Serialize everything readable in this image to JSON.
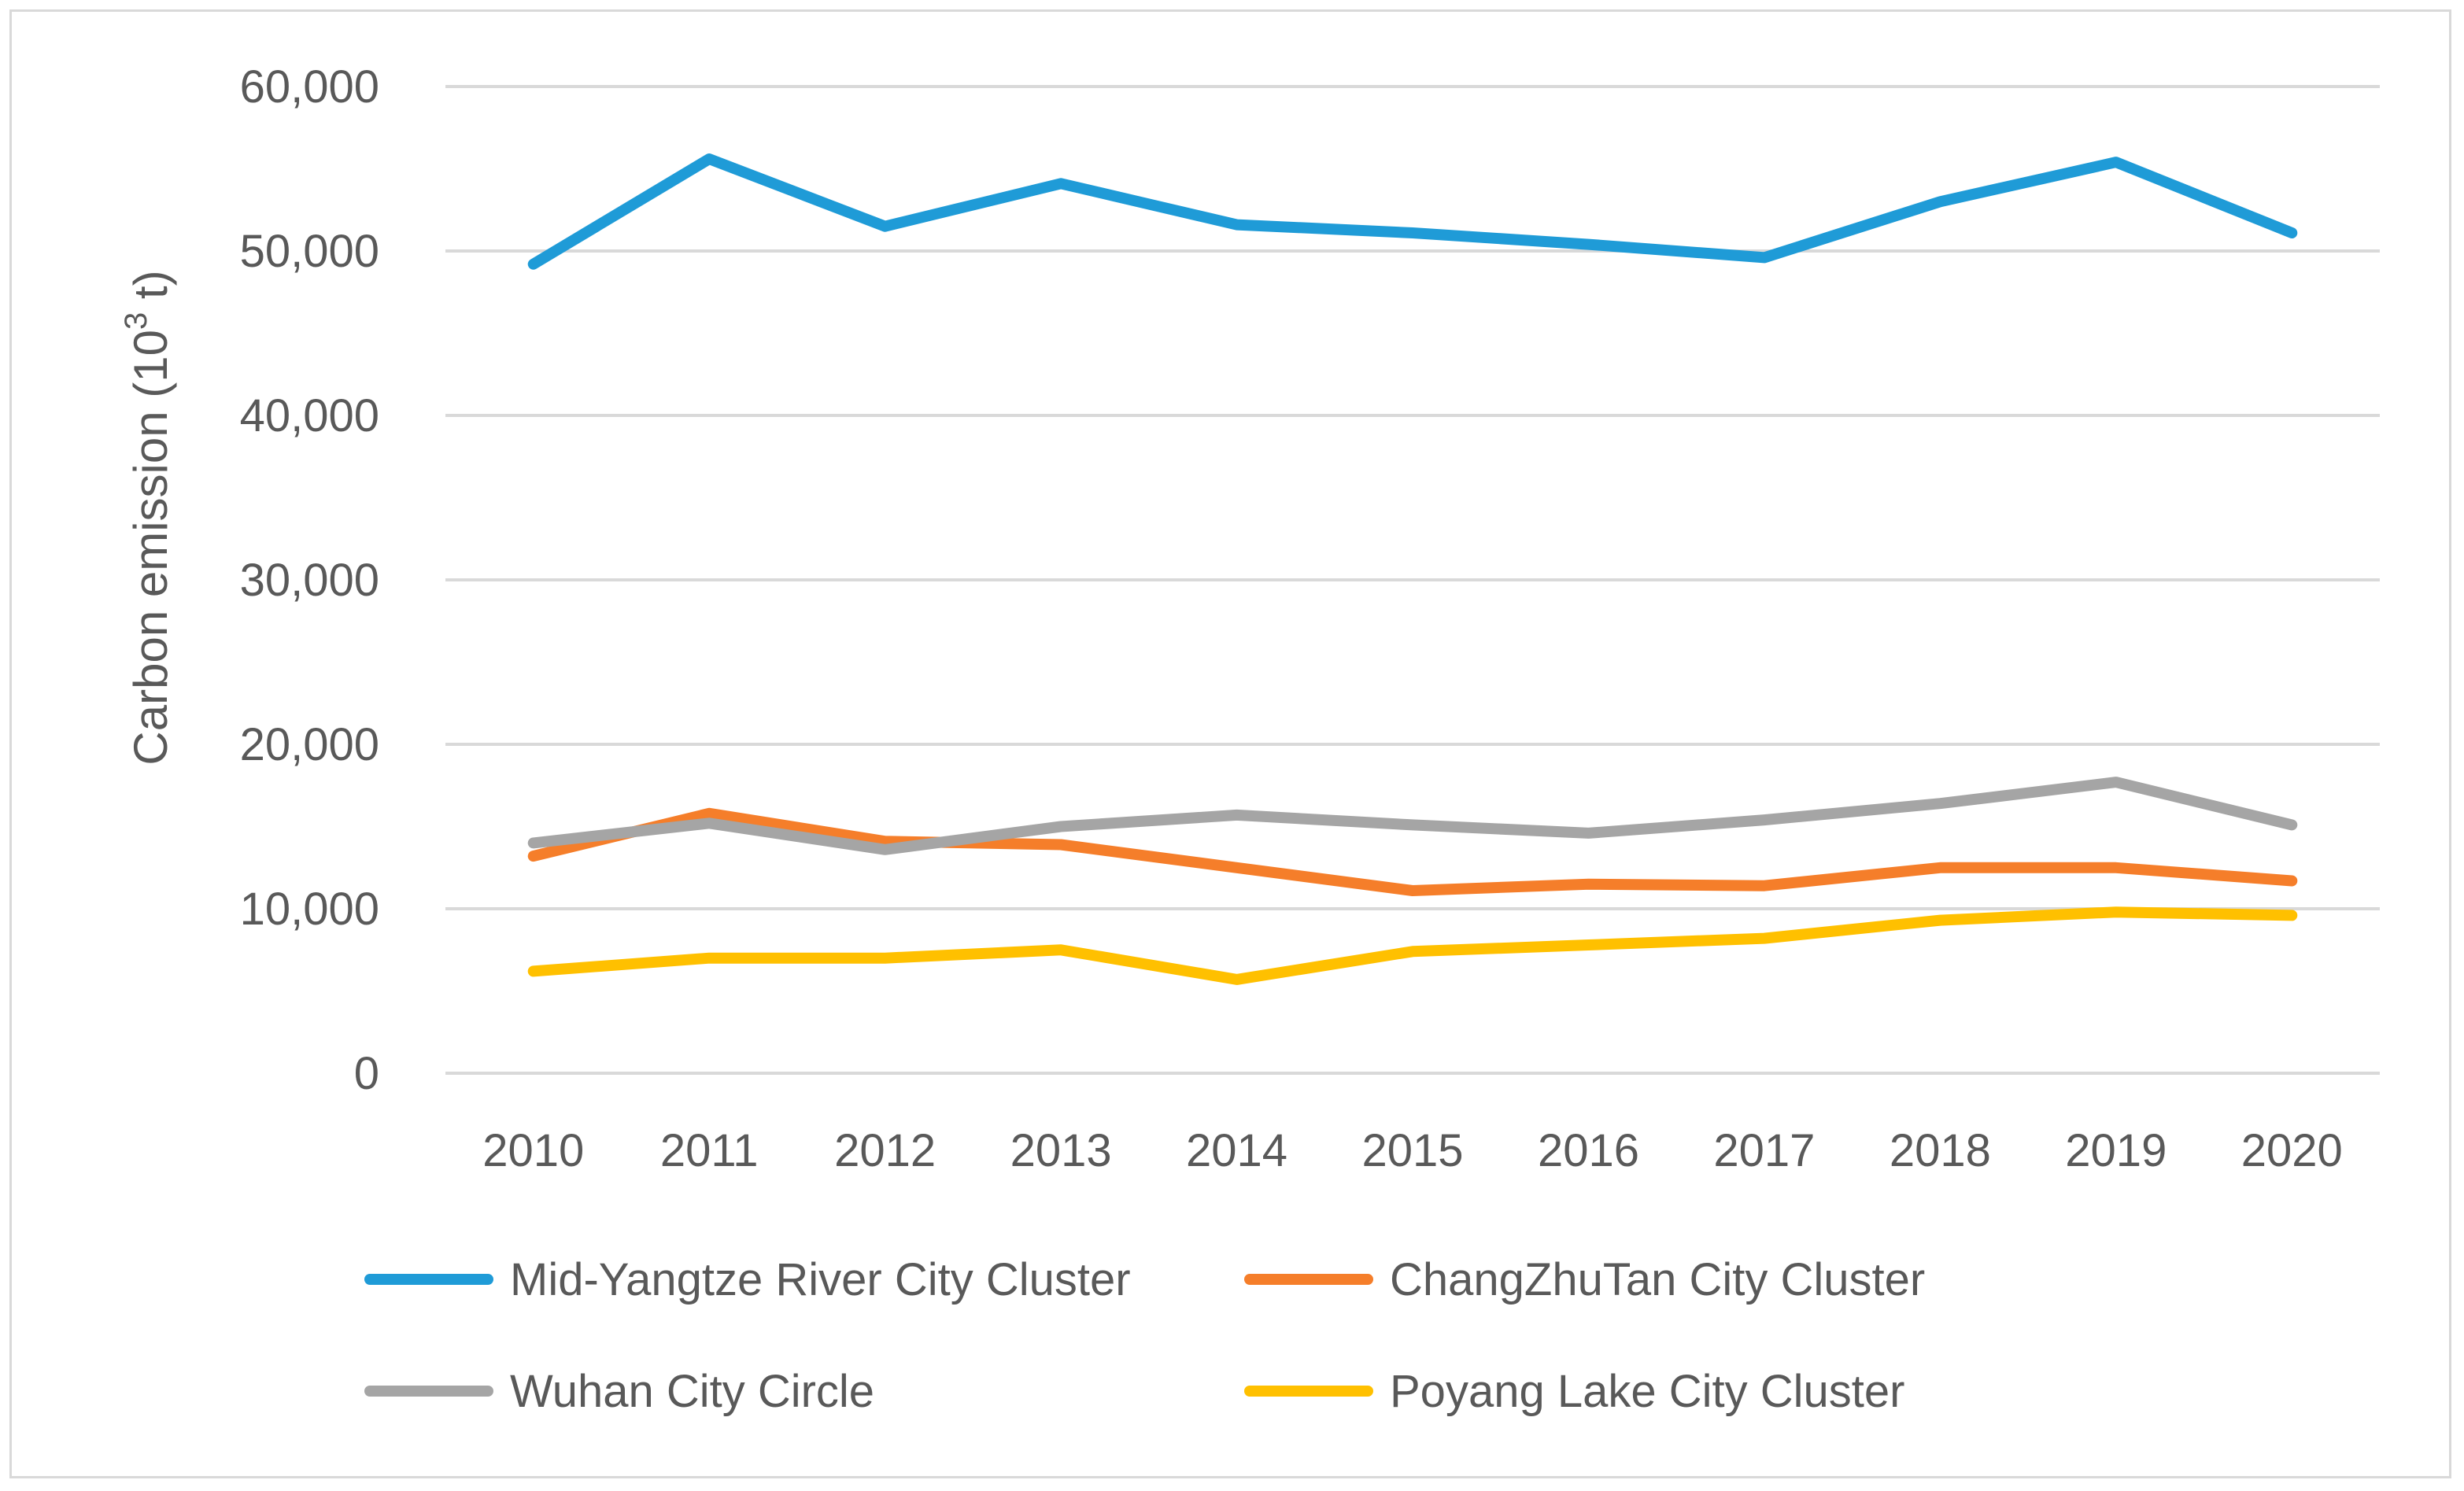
{
  "chart_data": {
    "type": "line",
    "title": "",
    "xlabel": "",
    "ylabel": {
      "main": "Carbon emission (10",
      "superscript": "3",
      "suffix": " t)"
    },
    "ylim": [
      0,
      60000
    ],
    "yticks": [
      0,
      10000,
      20000,
      30000,
      40000,
      50000,
      60000
    ],
    "ytick_labels": [
      "0",
      "10,000",
      "20,000",
      "30,000",
      "40,000",
      "50,000",
      "60,000"
    ],
    "grid": true,
    "legend_position": "bottom",
    "categories": [
      "2010",
      "2011",
      "2012",
      "2013",
      "2014",
      "2015",
      "2016",
      "2017",
      "2018",
      "2019",
      "2020"
    ],
    "series": [
      {
        "name": "Mid-Yangtze River City Cluster",
        "color": "#1f9bd7",
        "values": [
          49200,
          55600,
          51500,
          54100,
          51600,
          51100,
          50400,
          49600,
          53000,
          55400,
          51100
        ]
      },
      {
        "name": "ChangZhuTan City Cluster",
        "color": "#f57e2a",
        "values": [
          13200,
          15800,
          14100,
          13900,
          12500,
          11100,
          11500,
          11400,
          12500,
          12500,
          11700
        ]
      },
      {
        "name": "Wuhan City Circle",
        "color": "#a5a5a5",
        "values": [
          14000,
          15200,
          13600,
          15000,
          15700,
          15100,
          14600,
          15400,
          16400,
          17700,
          15100
        ]
      },
      {
        "name": "Poyang Lake City Cluster",
        "color": "#ffc000",
        "values": [
          6200,
          7000,
          7000,
          7500,
          5700,
          7400,
          7800,
          8200,
          9300,
          9800,
          9600
        ]
      }
    ]
  }
}
